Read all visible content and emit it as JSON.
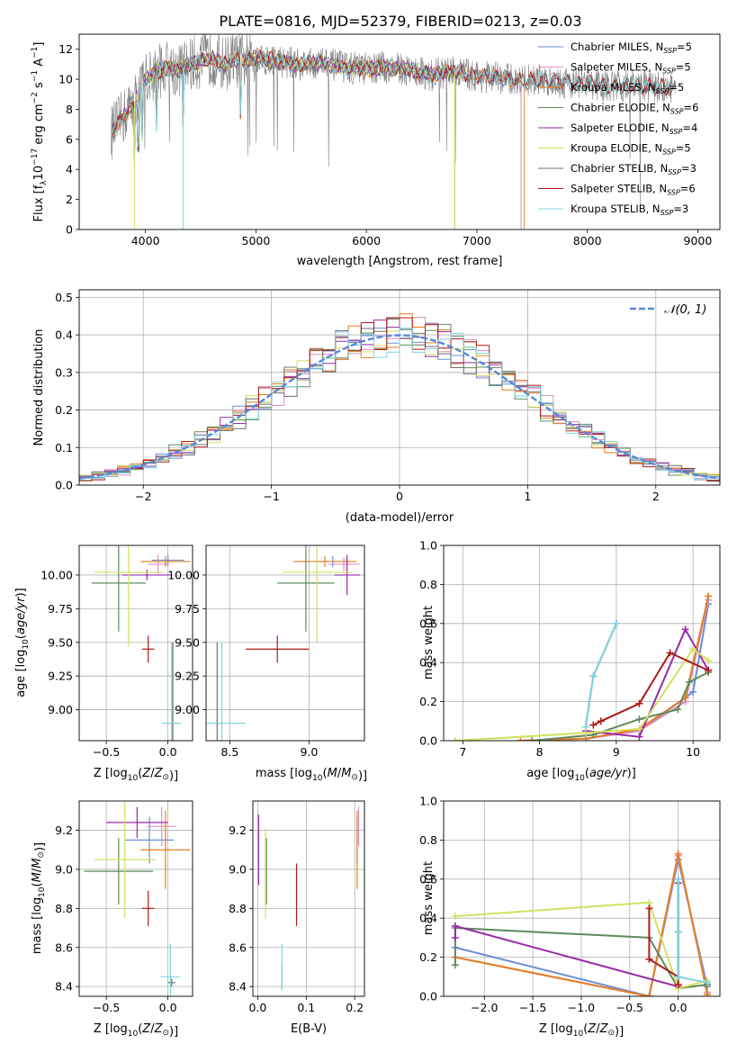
{
  "figure": {
    "suptitle": "PLATE=0816, MJD=52379, FIBERID=0213, z=0.03"
  },
  "colors": {
    "Chabrier MILES": "#6a8fd8",
    "Salpeter MILES": "#e090c0",
    "Kroupa MILES": "#e47e22",
    "Chabrier ELODIE": "#5f8a5f",
    "Salpeter ELODIE": "#9a2aa8",
    "Kroupa ELODIE": "#d4e060",
    "Chabrier STELIB": "#6e6e6e",
    "Salpeter STELIB": "#b01818",
    "Kroupa STELIB": "#7dd4e0",
    "data": "#7f7f7f",
    "normal": "#5588dd"
  },
  "chart_data": [
    {
      "id": "spectrum",
      "type": "line",
      "title": "",
      "xlabel": "wavelength [Angstrom, rest frame]",
      "ylabel_parts": [
        "Flux [f",
        "λ",
        "10",
        "−17",
        " erg cm",
        "−2",
        " s",
        "−1",
        " A",
        "−1",
        "]"
      ],
      "xlim": [
        3400,
        9200
      ],
      "ylim": [
        0,
        13
      ],
      "xticks": [
        4000,
        5000,
        6000,
        7000,
        8000,
        9000
      ],
      "yticks": [
        0,
        2,
        4,
        6,
        8,
        10,
        12
      ],
      "legend_position": "top-right",
      "legend": [
        {
          "name": "Chabrier MILES",
          "nssp": "5"
        },
        {
          "name": "Salpeter MILES",
          "nssp": "5"
        },
        {
          "name": "Kroupa MILES",
          "nssp": "5"
        },
        {
          "name": "Chabrier ELODIE",
          "nssp": "6"
        },
        {
          "name": "Salpeter ELODIE",
          "nssp": "4"
        },
        {
          "name": "Kroupa ELODIE",
          "nssp": "5"
        },
        {
          "name": "Chabrier STELIB",
          "nssp": "3"
        },
        {
          "name": "Salpeter STELIB",
          "nssp": "6"
        },
        {
          "name": "Kroupa STELIB",
          "nssp": "3"
        }
      ],
      "model_envelope": {
        "x": [
          3700,
          3800,
          3900,
          4000,
          4100,
          4200,
          4300,
          4400,
          4500,
          4600,
          4700,
          4800,
          4900,
          5000,
          5200,
          5400,
          5600,
          5800,
          6000,
          6200,
          6400,
          6600,
          6800,
          7000,
          7200,
          7400,
          7600,
          7800,
          8000,
          8200,
          8400,
          8600,
          8800
        ],
        "y": [
          6.5,
          7.5,
          8.5,
          10.0,
          10.5,
          10.8,
          10.6,
          11.0,
          11.2,
          11.4,
          11.0,
          11.3,
          11.2,
          11.5,
          11.2,
          11.0,
          11.1,
          10.8,
          10.7,
          10.8,
          10.6,
          10.3,
          10.5,
          10.2,
          10.1,
          9.9,
          10.0,
          9.8,
          9.7,
          9.5,
          9.6,
          9.5,
          9.4
        ]
      },
      "model_ends": [
        {
          "series": "Chabrier MILES",
          "x_end": 7400
        },
        {
          "series": "Salpeter MILES",
          "x_end": 7400
        },
        {
          "series": "Kroupa MILES",
          "x_end": 7430
        },
        {
          "series": "Chabrier ELODIE",
          "x_end": 6800
        },
        {
          "series": "Salpeter ELODIE",
          "x_end": 6800
        },
        {
          "series": "Kroupa ELODIE",
          "x_end": 6800
        },
        {
          "series": "Chabrier STELIB",
          "x_end": 8800
        },
        {
          "series": "Salpeter STELIB",
          "x_end": 8800
        },
        {
          "series": "Kroupa STELIB",
          "x_end": 8800
        }
      ],
      "model_spikes": [
        3900,
        3935,
        3970,
        4102,
        4340,
        4861
      ]
    },
    {
      "id": "residuals",
      "type": "histogram",
      "xlabel": "(data-model)/error",
      "ylabel": "Normed distribution",
      "xlim": [
        -2.5,
        2.5
      ],
      "ylim": [
        0,
        0.52
      ],
      "xticks": [
        -2,
        -1,
        0,
        1,
        2
      ],
      "yticks": [
        0.0,
        0.1,
        0.2,
        0.3,
        0.4,
        0.5
      ],
      "grid": true,
      "bin_width": 0.1,
      "legend_position": "top-right",
      "legend_label": "N(0,1)",
      "normal": {
        "mean": 0,
        "sigma": 1
      }
    },
    {
      "id": "age_vs_Z",
      "type": "errorbar",
      "xlabel": "Z [log10(Z/Z⊙)]",
      "ylabel": "age  [log10(age/yr)]",
      "xlim": [
        -0.72,
        0.2
      ],
      "ylim": [
        8.77,
        10.22
      ],
      "xticks": [
        -0.5,
        0.0
      ],
      "yticks": [
        9.0,
        9.25,
        9.5,
        9.75,
        10.0
      ],
      "grid": true,
      "points": [
        {
          "series": "Chabrier MILES",
          "x": 0.0,
          "xerr": 0.13,
          "y": 10.11,
          "yerr": 0.04
        },
        {
          "series": "Salpeter MILES",
          "x": -0.08,
          "xerr": 0.08,
          "y": 10.08,
          "yerr": 0.07
        },
        {
          "series": "Kroupa MILES",
          "x": -0.02,
          "xerr": 0.2,
          "y": 10.1,
          "yerr": 0.04
        },
        {
          "series": "Chabrier ELODIE",
          "x": -0.4,
          "xerr": 0.22,
          "y": 9.94,
          "yerr": 0.36
        },
        {
          "series": "Salpeter ELODIE",
          "x": -0.17,
          "xerr": 0.2,
          "y": 10.0,
          "yerr": 0.04
        },
        {
          "series": "Kroupa ELODIE",
          "x": -0.32,
          "xerr": 0.28,
          "y": 10.02,
          "yerr": 0.55
        },
        {
          "series": "Chabrier STELIB",
          "x": 0.04,
          "xerr": 0.05,
          "y": 8.9,
          "yerr": 0.6
        },
        {
          "series": "Salpeter STELIB",
          "x": -0.16,
          "xerr": 0.05,
          "y": 9.45,
          "yerr": 0.1
        },
        {
          "series": "Kroupa STELIB",
          "x": 0.03,
          "xerr": 0.08,
          "y": 8.9,
          "yerr": 0.6
        }
      ]
    },
    {
      "id": "age_vs_mass",
      "type": "errorbar",
      "xlabel": "mass [log10(M/M⊙)]",
      "ylabel": "",
      "xlim": [
        8.35,
        9.35
      ],
      "ylim": [
        8.77,
        10.22
      ],
      "xticks": [
        8.5,
        9.0
      ],
      "yticks": [
        9.0,
        9.25,
        9.5,
        9.75,
        10.0
      ],
      "grid": true,
      "points": [
        {
          "series": "Chabrier MILES",
          "x": 9.15,
          "xerr": 0.12,
          "y": 10.1,
          "yerr": 0.04
        },
        {
          "series": "Salpeter MILES",
          "x": 9.22,
          "xerr": 0.1,
          "y": 10.08,
          "yerr": 0.05
        },
        {
          "series": "Kroupa MILES",
          "x": 9.1,
          "xerr": 0.2,
          "y": 10.1,
          "yerr": 0.04
        },
        {
          "series": "Chabrier ELODIE",
          "x": 8.98,
          "xerr": 0.18,
          "y": 9.94,
          "yerr": 0.36
        },
        {
          "series": "Salpeter ELODIE",
          "x": 9.24,
          "xerr": 0.08,
          "y": 10.0,
          "yerr": 0.15
        },
        {
          "series": "Kroupa ELODIE",
          "x": 9.05,
          "xerr": 0.22,
          "y": 10.02,
          "yerr": 0.52
        },
        {
          "series": "Chabrier STELIB",
          "x": 8.42,
          "xerr": 0.02,
          "y": 8.9,
          "yerr": 0.6
        },
        {
          "series": "Salpeter STELIB",
          "x": 8.8,
          "xerr": 0.2,
          "y": 9.45,
          "yerr": 0.1
        },
        {
          "series": "Kroupa STELIB",
          "x": 8.45,
          "xerr": 0.15,
          "y": 8.9,
          "yerr": 0.6
        }
      ]
    },
    {
      "id": "weight_vs_age",
      "type": "line",
      "xlabel": "age  [log10(age/yr)]",
      "ylabel": "mass weight",
      "xlim": [
        6.75,
        10.35
      ],
      "ylim": [
        0,
        1.0
      ],
      "xticks": [
        7,
        8,
        9,
        10
      ],
      "yticks": [
        0.0,
        0.2,
        0.4,
        0.6,
        0.8,
        1.0
      ],
      "grid": true,
      "series": [
        {
          "name": "Chabrier MILES",
          "x": [
            7.75,
            8.6,
            9.3,
            10.0,
            10.2
          ],
          "y": [
            0.0,
            0.01,
            0.05,
            0.25,
            0.7
          ]
        },
        {
          "name": "Salpeter MILES",
          "x": [
            7.75,
            8.6,
            9.3,
            9.9,
            10.2
          ],
          "y": [
            0.0,
            0.01,
            0.05,
            0.2,
            0.72
          ]
        },
        {
          "name": "Kroupa MILES",
          "x": [
            7.75,
            8.6,
            9.3,
            9.9,
            10.2
          ],
          "y": [
            0.0,
            0.01,
            0.06,
            0.22,
            0.74
          ]
        },
        {
          "name": "Chabrier ELODIE",
          "x": [
            7.9,
            8.7,
            9.3,
            9.8,
            9.95,
            10.2
          ],
          "y": [
            0.0,
            0.03,
            0.11,
            0.16,
            0.3,
            0.35
          ]
        },
        {
          "name": "Salpeter ELODIE",
          "x": [
            8.6,
            9.3,
            9.9,
            10.2
          ],
          "y": [
            0.05,
            0.02,
            0.57,
            0.36
          ]
        },
        {
          "name": "Kroupa ELODIE",
          "x": [
            6.9,
            8.6,
            9.3,
            10.0,
            10.2
          ],
          "y": [
            0.0,
            0.04,
            0.06,
            0.47,
            0.41
          ]
        },
        {
          "name": "Chabrier STELIB",
          "x": [
            8.6,
            8.7,
            9.0
          ],
          "y": [
            0.07,
            0.33,
            0.6
          ]
        },
        {
          "name": "Salpeter STELIB",
          "x": [
            8.7,
            8.8,
            9.3,
            9.7,
            10.2
          ],
          "y": [
            0.08,
            0.1,
            0.19,
            0.45,
            0.36
          ]
        },
        {
          "name": "Kroupa STELIB",
          "x": [
            8.6,
            8.7,
            9.0
          ],
          "y": [
            0.07,
            0.33,
            0.6
          ]
        }
      ]
    },
    {
      "id": "mass_vs_Z",
      "type": "errorbar",
      "xlabel": "Z [log10(Z/Z⊙)]",
      "ylabel": "mass [log10(M/M⊙)]",
      "xlim": [
        -0.72,
        0.2
      ],
      "ylim": [
        8.35,
        9.35
      ],
      "xticks": [
        -0.5,
        0.0
      ],
      "yticks": [
        8.4,
        8.6,
        8.8,
        9.0,
        9.2
      ],
      "grid": true,
      "points": [
        {
          "series": "Chabrier MILES",
          "x": -0.15,
          "xerr": 0.2,
          "y": 9.15,
          "yerr": 0.12
        },
        {
          "series": "Salpeter MILES",
          "x": -0.05,
          "xerr": 0.12,
          "y": 9.22,
          "yerr": 0.1
        },
        {
          "series": "Kroupa MILES",
          "x": -0.02,
          "xerr": 0.2,
          "y": 9.1,
          "yerr": 0.2
        },
        {
          "series": "Chabrier ELODIE",
          "x": -0.4,
          "xerr": 0.28,
          "y": 8.99,
          "yerr": 0.17
        },
        {
          "series": "Salpeter ELODIE",
          "x": -0.25,
          "xerr": 0.25,
          "y": 9.24,
          "yerr": 0.08
        },
        {
          "series": "Kroupa ELODIE",
          "x": -0.35,
          "xerr": 0.25,
          "y": 9.05,
          "yerr": 0.3
        },
        {
          "series": "Chabrier STELIB",
          "x": 0.03,
          "xerr": 0.03,
          "y": 8.42,
          "yerr": 0.02
        },
        {
          "series": "Salpeter STELIB",
          "x": -0.16,
          "xerr": 0.05,
          "y": 8.8,
          "yerr": 0.09
        },
        {
          "series": "Kroupa STELIB",
          "x": 0.02,
          "xerr": 0.08,
          "y": 8.45,
          "yerr": 0.17
        }
      ]
    },
    {
      "id": "mass_vs_ebv",
      "type": "errorbar",
      "xlabel": "E(B-V)",
      "ylabel": "",
      "xlim": [
        -0.01,
        0.22
      ],
      "ylim": [
        8.35,
        9.35
      ],
      "xticks": [
        0.0,
        0.1,
        0.2
      ],
      "yticks": [
        8.4,
        8.6,
        8.8,
        9.0,
        9.2
      ],
      "grid": true,
      "points": [
        {
          "series": "Chabrier MILES",
          "x": 0.205,
          "xerr": 0.0,
          "y": 9.15,
          "yerr": 0.12
        },
        {
          "series": "Salpeter MILES",
          "x": 0.208,
          "xerr": 0.0,
          "y": 9.22,
          "yerr": 0.1
        },
        {
          "series": "Kroupa MILES",
          "x": 0.205,
          "xerr": 0.0,
          "y": 9.1,
          "yerr": 0.2
        },
        {
          "series": "Chabrier ELODIE",
          "x": 0.018,
          "xerr": 0.0,
          "y": 8.99,
          "yerr": 0.17
        },
        {
          "series": "Salpeter ELODIE",
          "x": 0.002,
          "xerr": 0.0,
          "y": 9.1,
          "yerr": 0.18
        },
        {
          "series": "Kroupa ELODIE",
          "x": 0.016,
          "xerr": 0.0,
          "y": 8.98,
          "yerr": 0.23
        },
        {
          "series": "Chabrier STELIB",
          "x": 0.05,
          "xerr": 0.0,
          "y": 8.45,
          "yerr": 0.06
        },
        {
          "series": "Salpeter STELIB",
          "x": 0.08,
          "xerr": 0.0,
          "y": 8.87,
          "yerr": 0.16
        },
        {
          "series": "Kroupa STELIB",
          "x": 0.05,
          "xerr": 0.0,
          "y": 8.5,
          "yerr": 0.12
        }
      ]
    },
    {
      "id": "weight_vs_Z",
      "type": "line",
      "xlabel": "Z [log10(Z/Z⊙)]",
      "ylabel": "mass weight",
      "xlim": [
        -2.42,
        0.43
      ],
      "ylim": [
        0,
        1.0
      ],
      "xticks": [
        -2.0,
        -1.5,
        -1.0,
        -0.5,
        0.0
      ],
      "yticks": [
        0.0,
        0.2,
        0.4,
        0.6,
        0.8,
        1.0
      ],
      "grid": true,
      "series": [
        {
          "name": "Chabrier MILES",
          "x": [
            -2.3,
            -0.3,
            0.0,
            0.3
          ],
          "y": [
            0.25,
            0.0,
            0.7,
            0.05
          ]
        },
        {
          "name": "Salpeter MILES",
          "x": [
            -2.3,
            -0.3,
            0.0,
            0.3
          ],
          "y": [
            0.2,
            0.0,
            0.72,
            0.02
          ]
        },
        {
          "name": "Kroupa MILES",
          "x": [
            -2.3,
            -0.3,
            0.0,
            0.3
          ],
          "y": [
            0.2,
            0.0,
            0.73,
            0.01
          ]
        },
        {
          "name": "Chabrier ELODIE",
          "x": [
            -2.3,
            -2.3,
            -0.3,
            0.0,
            0.3
          ],
          "y": [
            0.16,
            0.35,
            0.3,
            0.04,
            0.06
          ]
        },
        {
          "name": "Salpeter ELODIE",
          "x": [
            -2.3,
            -2.3,
            0.0,
            0.0
          ],
          "y": [
            0.3,
            0.36,
            0.05,
            0.58
          ]
        },
        {
          "name": "Kroupa ELODIE",
          "x": [
            -2.3,
            -0.3,
            0.0,
            0.3
          ],
          "y": [
            0.41,
            0.48,
            0.04,
            0.08
          ]
        },
        {
          "name": "Chabrier STELIB",
          "x": [
            0.0,
            0.0,
            0.0
          ],
          "y": [
            0.1,
            0.33,
            0.6
          ]
        },
        {
          "name": "Salpeter STELIB",
          "x": [
            -0.3,
            -0.3,
            0.0,
            0.0
          ],
          "y": [
            0.45,
            0.19,
            0.1,
            0.06
          ]
        },
        {
          "name": "Kroupa STELIB",
          "x": [
            0.0,
            0.0,
            0.0,
            0.3
          ],
          "y": [
            0.33,
            0.6,
            0.1,
            0.07
          ]
        }
      ]
    }
  ]
}
